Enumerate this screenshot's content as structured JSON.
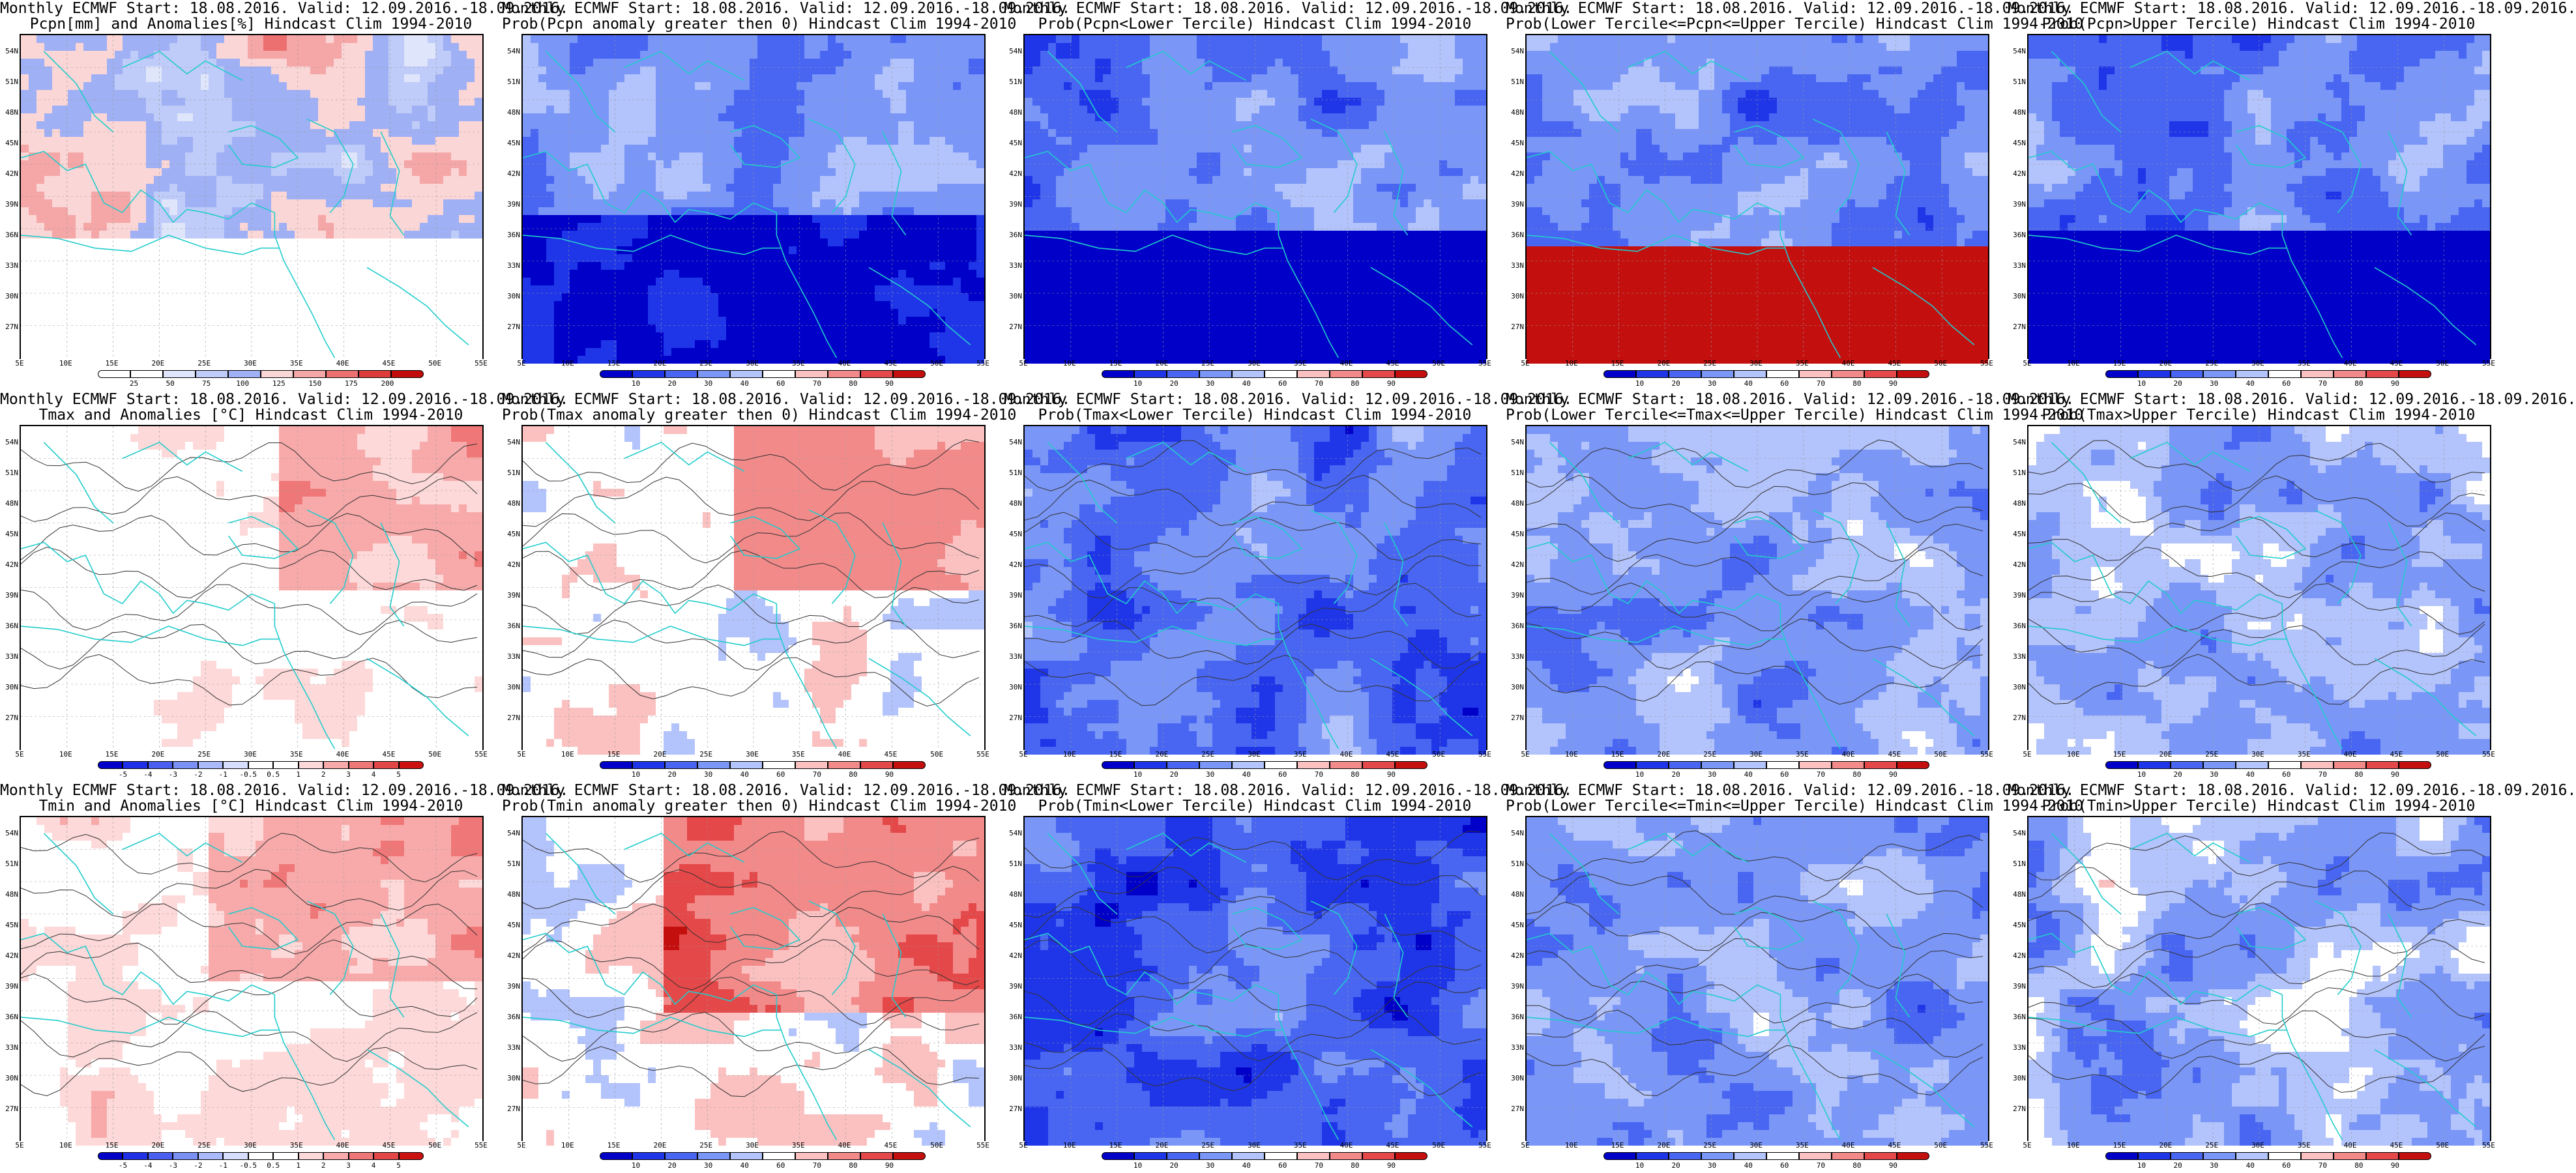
{
  "palettes": {
    "anom": [
      "#0000c8",
      "#2030e6",
      "#4a5ef0",
      "#7a90f5",
      "#a9b9fa",
      "#d7defd",
      "#ffffff",
      "#ffffff",
      "#fdd9d9",
      "#f8aaaa",
      "#f07777",
      "#e34646",
      "#cc1111"
    ],
    "prob": [
      "#0000c8",
      "#1f36e8",
      "#4866f2",
      "#7a96f7",
      "#b3c3fb",
      "#ffffff",
      "#fbc1c1",
      "#f38a8a",
      "#e54848",
      "#c40f0f"
    ],
    "pcpn": [
      "#ffffff",
      "#ffffff",
      "#dfe6fb",
      "#bfcbf8",
      "#9fb0f4",
      "#fbd6d6",
      "#f5a6a6",
      "#ec7070",
      "#de3b3b",
      "#c20c0c"
    ]
  },
  "ticks": {
    "anom": [
      "-5",
      "-4",
      "-3",
      "-2",
      "-1",
      "-0.5",
      "0.5",
      "1",
      "2",
      "3",
      "4",
      "5"
    ],
    "prob": [
      "10",
      "20",
      "30",
      "40",
      "60",
      "70",
      "80",
      "90"
    ],
    "pcpn": [
      "25",
      "50",
      "75",
      "100",
      "125",
      "150",
      "175",
      "200"
    ]
  },
  "lat_labels": [
    "54N",
    "51N",
    "48N",
    "45N",
    "42N",
    "39N",
    "36N",
    "33N",
    "30N",
    "27N"
  ],
  "lon_labels": [
    "5E",
    "10E",
    "15E",
    "20E",
    "25E",
    "30E",
    "35E",
    "40E",
    "45E",
    "50E",
    "55E"
  ],
  "panels": [
    {
      "line1": "Monthly ECMWF Start: 18.08.2016. Valid: 12.09.2016.-18.09.2016.",
      "line2": "Pcpn[mm] and Anomalies[%] Hindcast Clim 1994-2010",
      "palette": "pcpn",
      "field": "pcpn_anom"
    },
    {
      "line1": "Monthly ECMWF Start: 18.08.2016. Valid: 12.09.2016.-18.09.2016.",
      "line2": "Prob(Pcpn anomaly greater then 0) Hindcast Clim 1994-2010",
      "palette": "prob",
      "field": "pcpn_pos"
    },
    {
      "line1": "Monthly ECMWF Start: 18.08.2016. Valid: 12.09.2016.-18.09.2016.",
      "line2": "Prob(Pcpn<Lower Tercile) Hindcast Clim 1994-2010",
      "palette": "prob",
      "field": "pcpn_low"
    },
    {
      "line1": "Monthly ECMWF Start: 18.08.2016. Valid: 12.09.2016.-18.09.2016.",
      "line2": "Prob(Lower Tercile<=Pcpn<=Upper Tercile) Hindcast Clim 1994-2010",
      "palette": "prob",
      "field": "pcpn_mid"
    },
    {
      "line1": "Monthly ECMWF Start: 18.08.2016. Valid: 12.09.2016.-18.09.2016.",
      "line2": "Prob(Pcpn>Upper Tercile) Hindcast Clim 1994-2010",
      "palette": "prob",
      "field": "pcpn_up"
    },
    {
      "line1": "Monthly ECMWF Start: 18.08.2016. Valid: 12.09.2016.-18.09.2016.",
      "line2": "Tmax and Anomalies [°C] Hindcast Clim 1994-2010",
      "palette": "anom",
      "field": "tmax_anom"
    },
    {
      "line1": "Monthly ECMWF Start: 18.08.2016. Valid: 12.09.2016.-18.09.2016.",
      "line2": "Prob(Tmax anomaly greater then 0) Hindcast Clim 1994-2010",
      "palette": "prob",
      "field": "tmax_pos"
    },
    {
      "line1": "Monthly ECMWF Start: 18.08.2016. Valid: 12.09.2016.-18.09.2016.",
      "line2": "Prob(Tmax<Lower Tercile) Hindcast Clim 1994-2010",
      "palette": "prob",
      "field": "tmax_low"
    },
    {
      "line1": "Monthly ECMWF Start: 18.08.2016. Valid: 12.09.2016.-18.09.2016.",
      "line2": "Prob(Lower Tercile<=Tmax<=Upper Tercile) Hindcast Clim 1994-2010",
      "palette": "prob",
      "field": "tmax_mid"
    },
    {
      "line1": "Monthly ECMWF Start: 18.08.2016. Valid: 12.09.2016.-18.09.2016.",
      "line2": "Prob(Tmax>Upper Tercile) Hindcast Clim 1994-2010",
      "palette": "prob",
      "field": "tmax_up"
    },
    {
      "line1": "Monthly ECMWF Start: 18.08.2016. Valid: 12.09.2016.-18.09.2016.",
      "line2": "Tmin and Anomalies [°C] Hindcast Clim 1994-2010",
      "palette": "anom",
      "field": "tmin_anom"
    },
    {
      "line1": "Monthly ECMWF Start: 18.08.2016. Valid: 12.09.2016.-18.09.2016.",
      "line2": "Prob(Tmin anomaly greater then 0) Hindcast Clim 1994-2010",
      "palette": "prob",
      "field": "tmin_pos"
    },
    {
      "line1": "Monthly ECMWF Start: 18.08.2016. Valid: 12.09.2016.-18.09.2016.",
      "line2": "Prob(Tmin<Lower Tercile) Hindcast Clim 1994-2010",
      "palette": "prob",
      "field": "tmin_low"
    },
    {
      "line1": "Monthly ECMWF Start: 18.08.2016. Valid: 12.09.2016.-18.09.2016.",
      "line2": "Prob(Lower Tercile<=Tmin<=Upper Tercile) Hindcast Clim 1994-2010",
      "palette": "prob",
      "field": "tmin_mid"
    },
    {
      "line1": "Monthly ECMWF Start: 18.08.2016. Valid: 12.09.2016.-18.09.2016.",
      "line2": "Prob(Tmin>Upper Tercile) Hindcast Clim 1994-2010",
      "palette": "prob",
      "field": "tmin_up"
    }
  ],
  "colors": {
    "coast": "#22cccc",
    "contour": "#333333",
    "grid": "#999999"
  }
}
